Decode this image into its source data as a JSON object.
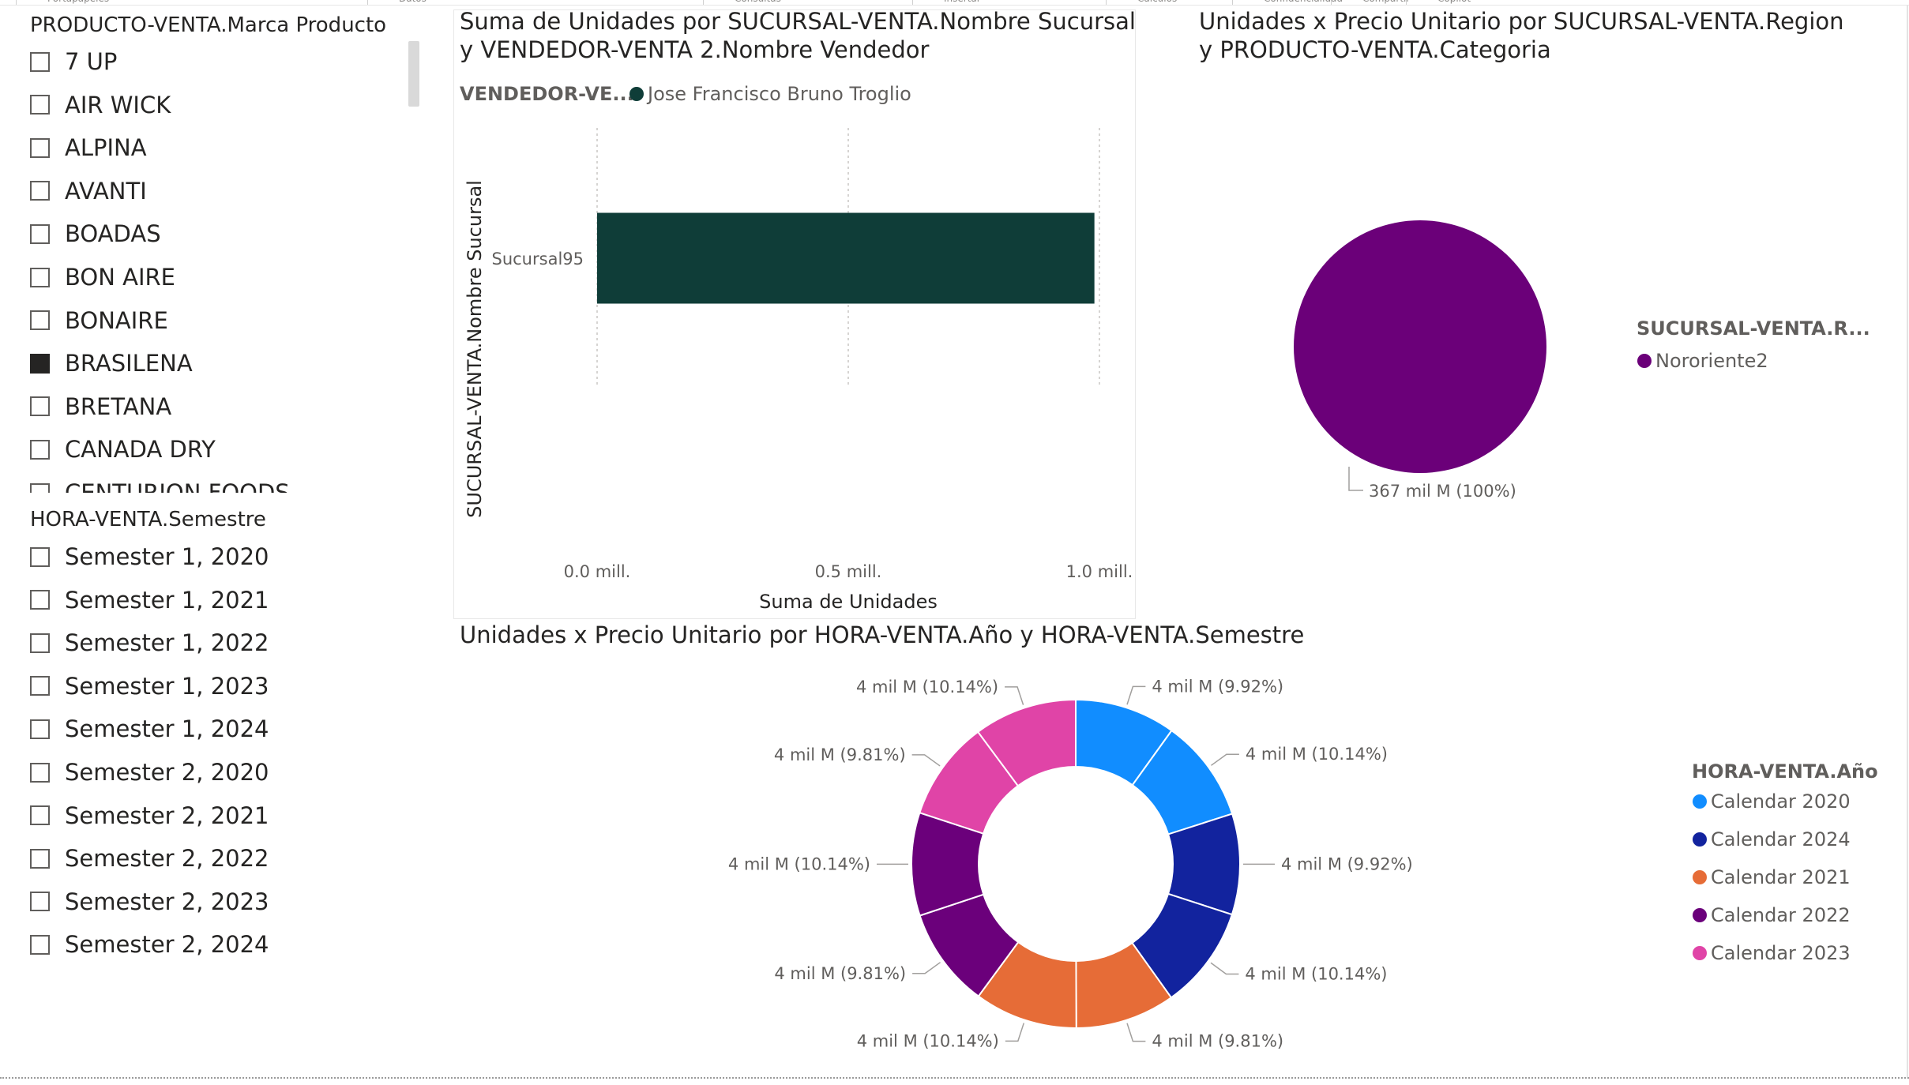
{
  "ribbon": {
    "groups": [
      "Portapapeles",
      "Datos",
      "Consultas",
      "Insertar",
      "Cálculos",
      "Confidencialidad",
      "Compartir",
      "Copilot"
    ]
  },
  "slicer_brand": {
    "title": "PRODUCTO-VENTA.Marca Producto",
    "items": [
      {
        "label": "7 UP",
        "checked": false
      },
      {
        "label": "AIR WICK",
        "checked": false
      },
      {
        "label": "ALPINA",
        "checked": false
      },
      {
        "label": "AVANTI",
        "checked": false
      },
      {
        "label": "BOADAS",
        "checked": false
      },
      {
        "label": "BON AIRE",
        "checked": false
      },
      {
        "label": "BONAIRE",
        "checked": false
      },
      {
        "label": "BRASILENA",
        "checked": true
      },
      {
        "label": "BRETANA",
        "checked": false
      },
      {
        "label": "CANADA DRY",
        "checked": false
      },
      {
        "label": "CENTURION FOODS",
        "checked": false
      }
    ]
  },
  "slicer_semester": {
    "title": "HORA-VENTA.Semestre",
    "items": [
      {
        "label": "Semester 1, 2020",
        "checked": false
      },
      {
        "label": "Semester 1, 2021",
        "checked": false
      },
      {
        "label": "Semester 1, 2022",
        "checked": false
      },
      {
        "label": "Semester 1, 2023",
        "checked": false
      },
      {
        "label": "Semester 1, 2024",
        "checked": false
      },
      {
        "label": "Semester 2, 2020",
        "checked": false
      },
      {
        "label": "Semester 2, 2021",
        "checked": false
      },
      {
        "label": "Semester 2, 2022",
        "checked": false
      },
      {
        "label": "Semester 2, 2023",
        "checked": false
      },
      {
        "label": "Semester 2, 2024",
        "checked": false
      }
    ]
  },
  "chart_data": [
    {
      "type": "bar",
      "title_line1": "Suma de Unidades por SUCURSAL-VENTA.Nombre Sucursal",
      "title_line2": "y VENDEDOR-VENTA 2.Nombre Vendedor",
      "legend_title": "VENDEDOR-VE...",
      "legend_placement": "top-left",
      "categories": [
        "Sucursal95"
      ],
      "series": [
        {
          "name": "Jose Francisco Bruno Troglio",
          "color": "#0f3d38",
          "values": [
            0.99
          ]
        }
      ],
      "xlabel": "Suma de Unidades",
      "ylabel": "SUCURSAL-VENTA.Nombre Sucursal",
      "xlim": [
        0,
        1.0
      ],
      "xticks": [
        0,
        0.5,
        1.0
      ],
      "xtick_labels": [
        "0.0 mill.",
        "0.5 mill.",
        "1.0 mill."
      ],
      "grid": true
    },
    {
      "type": "pie",
      "title_line1": "Unidades x Precio Unitario por SUCURSAL-VENTA.Region",
      "title_line2": "y PRODUCTO-VENTA.Categoria",
      "legend_title": "SUCURSAL-VENTA.R...",
      "legend_placement": "right",
      "slices": [
        {
          "label": "Nororiente2",
          "value": 100,
          "color": "#6b0079",
          "data_label": "367 mil M (100%)"
        }
      ]
    },
    {
      "type": "pie",
      "donut": true,
      "title": "Unidades x Precio Unitario por HORA-VENTA.Año y HORA-VENTA.Semestre",
      "legend_title": "HORA-VENTA.Año",
      "legend_placement": "right",
      "legend": [
        {
          "label": "Calendar 2020",
          "color": "#118dff"
        },
        {
          "label": "Calendar 2024",
          "color": "#12239e"
        },
        {
          "label": "Calendar 2021",
          "color": "#e66c37"
        },
        {
          "label": "Calendar 2022",
          "color": "#6b007b"
        },
        {
          "label": "Calendar 2023",
          "color": "#e044a7"
        }
      ],
      "slices": [
        {
          "year": "Calendar 2020",
          "value": 9.92,
          "color": "#118dff",
          "data_label": "4 mil M (9.92%)"
        },
        {
          "year": "Calendar 2020",
          "value": 10.14,
          "color": "#118dff",
          "data_label": "4 mil M (10.14%)"
        },
        {
          "year": "Calendar 2024",
          "value": 9.92,
          "color": "#12239e",
          "data_label": "4 mil M (9.92%)"
        },
        {
          "year": "Calendar 2024",
          "value": 10.14,
          "color": "#12239e",
          "data_label": "4 mil M (10.14%)"
        },
        {
          "year": "Calendar 2021",
          "value": 9.81,
          "color": "#e66c37",
          "data_label": "4 mil M (9.81%)"
        },
        {
          "year": "Calendar 2021",
          "value": 10.14,
          "color": "#e66c37",
          "data_label": "4 mil M (10.14%)"
        },
        {
          "year": "Calendar 2022",
          "value": 9.81,
          "color": "#6b007b",
          "data_label": "4 mil M (9.81%)"
        },
        {
          "year": "Calendar 2022",
          "value": 10.14,
          "color": "#6b007b",
          "data_label": "4 mil M (10.14%)"
        },
        {
          "year": "Calendar 2023",
          "value": 9.81,
          "color": "#e044a7",
          "data_label": "4 mil M (9.81%)"
        },
        {
          "year": "Calendar 2023",
          "value": 10.14,
          "color": "#e044a7",
          "data_label": "4 mil M (10.14%)"
        }
      ]
    }
  ]
}
